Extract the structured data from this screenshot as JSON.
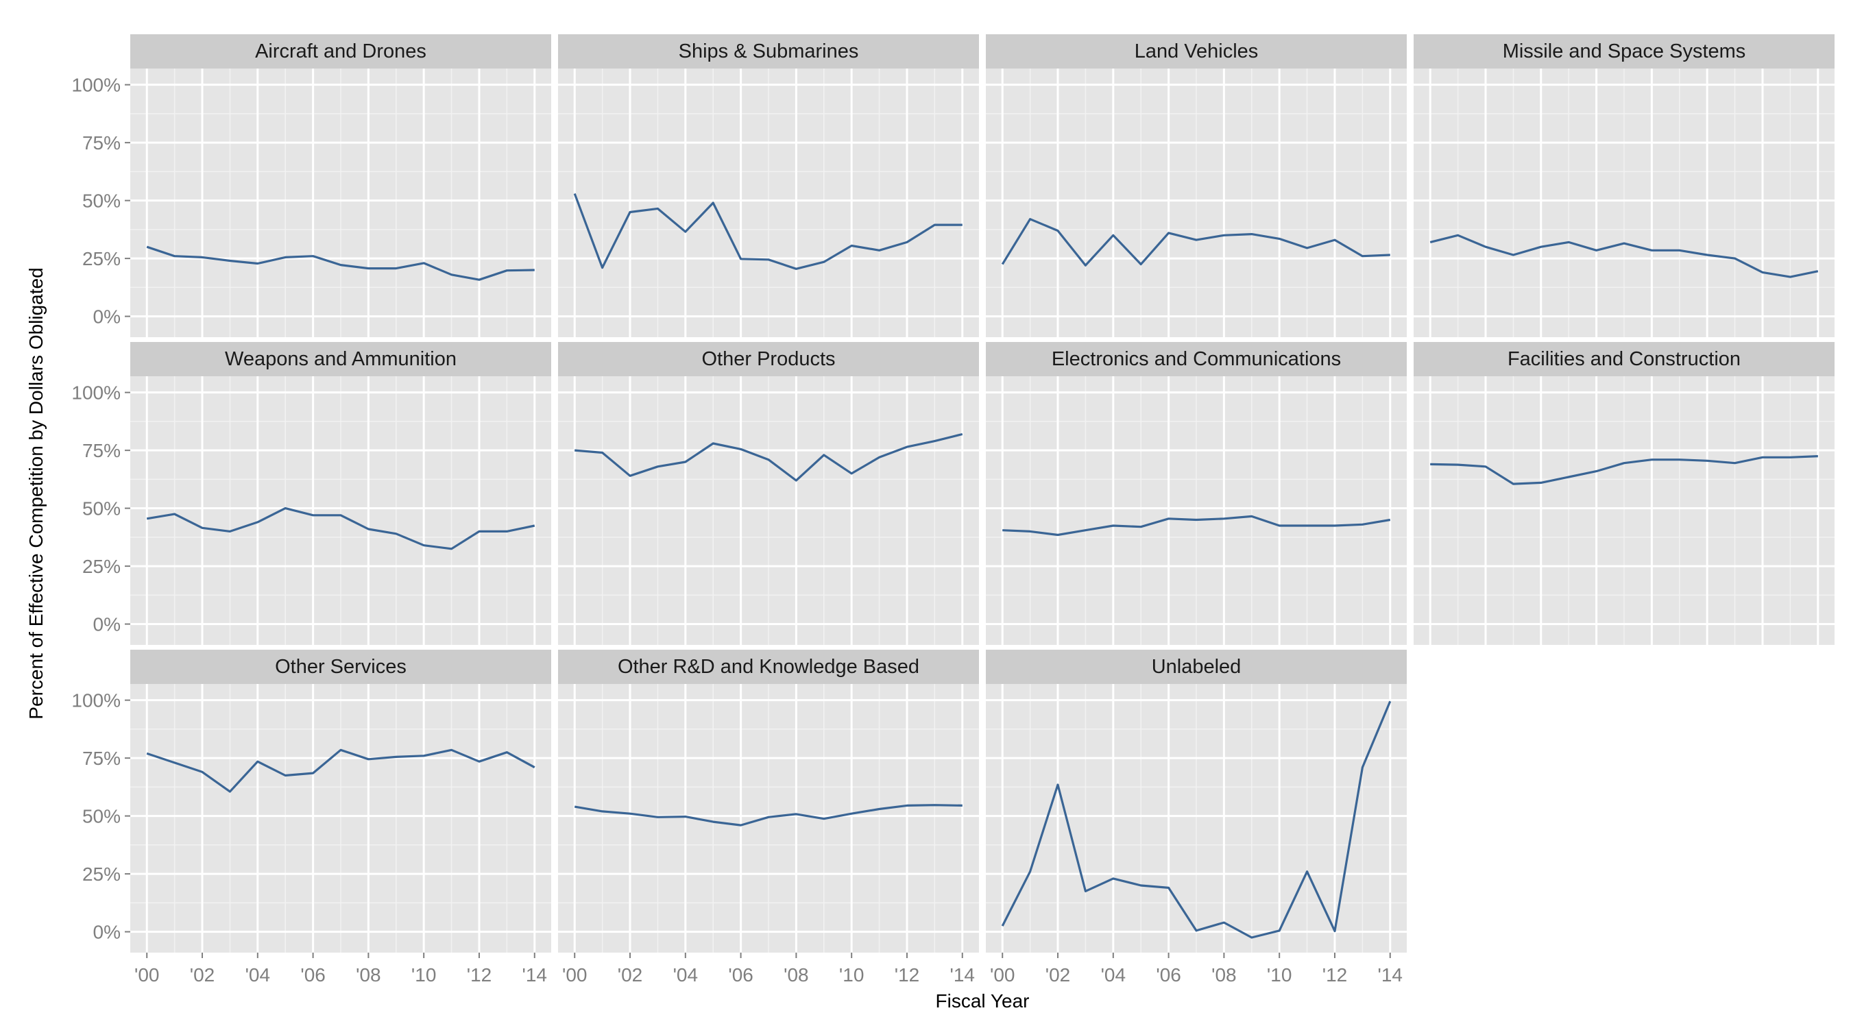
{
  "chart_data": {
    "type": "line",
    "layout": "facet-grid",
    "xlabel": "Fiscal Year",
    "ylabel": "Percent of Effective Competition by Dollars Obligated",
    "x": [
      2000,
      2001,
      2002,
      2003,
      2004,
      2005,
      2006,
      2007,
      2008,
      2009,
      2010,
      2011,
      2012,
      2013,
      2014
    ],
    "xlim": [
      1999.4,
      2014.6
    ],
    "ylim": [
      -0.09,
      1.07
    ],
    "x_ticks": [
      2000,
      2002,
      2004,
      2006,
      2008,
      2010,
      2012,
      2014
    ],
    "x_tick_labels": [
      "'00",
      "'02",
      "'04",
      "'06",
      "'08",
      "'10",
      "'12",
      "'14"
    ],
    "y_ticks": [
      0,
      0.25,
      0.5,
      0.75,
      1.0
    ],
    "y_tick_labels": [
      "0%",
      "25%",
      "50%",
      "75%",
      "100%"
    ],
    "grid": true,
    "line_color": "#3a6595",
    "panel_background": "#e5e5e5",
    "strip_background": "#cccccc",
    "panels": [
      {
        "name": "Aircraft and Drones",
        "values": [
          0.3,
          0.26,
          0.255,
          0.24,
          0.228,
          0.255,
          0.26,
          0.222,
          0.207,
          0.207,
          0.23,
          0.18,
          0.158,
          0.198,
          0.2
        ]
      },
      {
        "name": "Ships & Submarines",
        "values": [
          0.53,
          0.21,
          0.45,
          0.465,
          0.365,
          0.49,
          0.248,
          0.245,
          0.205,
          0.235,
          0.305,
          0.285,
          0.32,
          0.395,
          0.395
        ]
      },
      {
        "name": "Land Vehicles",
        "values": [
          0.225,
          0.42,
          0.37,
          0.22,
          0.35,
          0.225,
          0.36,
          0.33,
          0.35,
          0.355,
          0.335,
          0.295,
          0.33,
          0.26,
          0.265
        ]
      },
      {
        "name": "Missile and Space Systems",
        "values": [
          0.32,
          0.35,
          0.3,
          0.265,
          0.3,
          0.32,
          0.285,
          0.315,
          0.285,
          0.285,
          0.265,
          0.25,
          0.19,
          0.17,
          0.195
        ]
      },
      {
        "name": "Weapons and Ammunition",
        "values": [
          0.455,
          0.475,
          0.415,
          0.4,
          0.44,
          0.5,
          0.47,
          0.47,
          0.41,
          0.39,
          0.34,
          0.325,
          0.4,
          0.4,
          0.425
        ]
      },
      {
        "name": "Other Products",
        "values": [
          0.75,
          0.74,
          0.64,
          0.68,
          0.7,
          0.78,
          0.755,
          0.71,
          0.62,
          0.73,
          0.65,
          0.72,
          0.765,
          0.79,
          0.82
        ]
      },
      {
        "name": "Electronics and Communications",
        "values": [
          0.405,
          0.4,
          0.385,
          0.405,
          0.425,
          0.42,
          0.455,
          0.45,
          0.455,
          0.465,
          0.425,
          0.425,
          0.425,
          0.43,
          0.45
        ]
      },
      {
        "name": "Facilities and Construction",
        "values": [
          0.69,
          0.688,
          0.68,
          0.605,
          0.61,
          0.635,
          0.66,
          0.695,
          0.71,
          0.71,
          0.705,
          0.695,
          0.72,
          0.72,
          0.725
        ]
      },
      {
        "name": "Other Services",
        "values": [
          0.77,
          0.73,
          0.69,
          0.605,
          0.735,
          0.675,
          0.685,
          0.785,
          0.745,
          0.755,
          0.76,
          0.785,
          0.735,
          0.775,
          0.71
        ]
      },
      {
        "name": "Other R&D and Knowledge Based",
        "values": [
          0.54,
          0.52,
          0.51,
          0.495,
          0.497,
          0.475,
          0.46,
          0.495,
          0.508,
          0.488,
          0.51,
          0.53,
          0.545,
          0.547,
          0.545
        ]
      },
      {
        "name": "Unlabeled",
        "values": [
          0.025,
          0.26,
          0.635,
          0.175,
          0.23,
          0.2,
          0.19,
          0.005,
          0.04,
          -0.025,
          0.005,
          0.26,
          0.003,
          0.71,
          0.995
        ]
      }
    ]
  }
}
